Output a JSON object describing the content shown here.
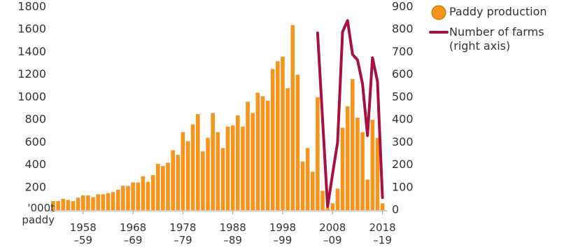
{
  "chart_data": {
    "type": "bar_line",
    "y_label": "'000t\npaddy",
    "categories": [
      null,
      null,
      null,
      null,
      null,
      null,
      "1958\n–59",
      null,
      null,
      null,
      null,
      null,
      null,
      null,
      null,
      null,
      "1968\n–69",
      null,
      null,
      null,
      null,
      null,
      null,
      null,
      null,
      null,
      "1978\n–79",
      null,
      null,
      null,
      null,
      null,
      null,
      null,
      null,
      null,
      "1988\n–89",
      null,
      null,
      null,
      null,
      null,
      null,
      null,
      null,
      null,
      "1998\n–99",
      null,
      null,
      null,
      null,
      null,
      null,
      null,
      null,
      null,
      "2008\n–09",
      null,
      null,
      null,
      null,
      null,
      null,
      null,
      null,
      null,
      "2018\n–19"
    ],
    "series": [
      {
        "name": "Paddy production",
        "color": "#f7941d",
        "values": [
          80,
          80,
          100,
          90,
          80,
          110,
          130,
          130,
          115,
          140,
          140,
          150,
          160,
          180,
          215,
          215,
          245,
          245,
          300,
          250,
          310,
          410,
          390,
          420,
          530,
          490,
          690,
          610,
          760,
          850,
          520,
          640,
          860,
          690,
          550,
          740,
          750,
          840,
          740,
          960,
          860,
          1040,
          1010,
          970,
          1250,
          1320,
          1360,
          1080,
          1640,
          1200,
          430,
          550,
          340,
          1000,
          170,
          20,
          60,
          190,
          730,
          920,
          1160,
          820,
          690,
          270,
          800,
          640,
          60
        ]
      },
      {
        "name": "Number of farms\n(right axis)",
        "color": "#a6123f",
        "axis": "y2",
        "values": [
          null,
          null,
          null,
          null,
          null,
          null,
          null,
          null,
          null,
          null,
          null,
          null,
          null,
          null,
          null,
          null,
          null,
          null,
          null,
          null,
          null,
          null,
          null,
          null,
          null,
          null,
          null,
          null,
          null,
          null,
          null,
          null,
          null,
          null,
          null,
          null,
          null,
          null,
          null,
          null,
          null,
          null,
          null,
          null,
          null,
          null,
          null,
          null,
          null,
          null,
          null,
          null,
          null,
          785,
          400,
          15,
          160,
          300,
          790,
          840,
          690,
          665,
          560,
          330,
          675,
          570,
          55
        ]
      }
    ],
    "ylim": [
      0,
      1800
    ],
    "yticks": [
      200,
      400,
      600,
      800,
      1000,
      1200,
      1400,
      1600,
      1800
    ],
    "y2lim": [
      0,
      900
    ],
    "y2ticks": [
      0,
      100,
      200,
      300,
      400,
      500,
      600,
      700,
      800,
      900
    ]
  }
}
